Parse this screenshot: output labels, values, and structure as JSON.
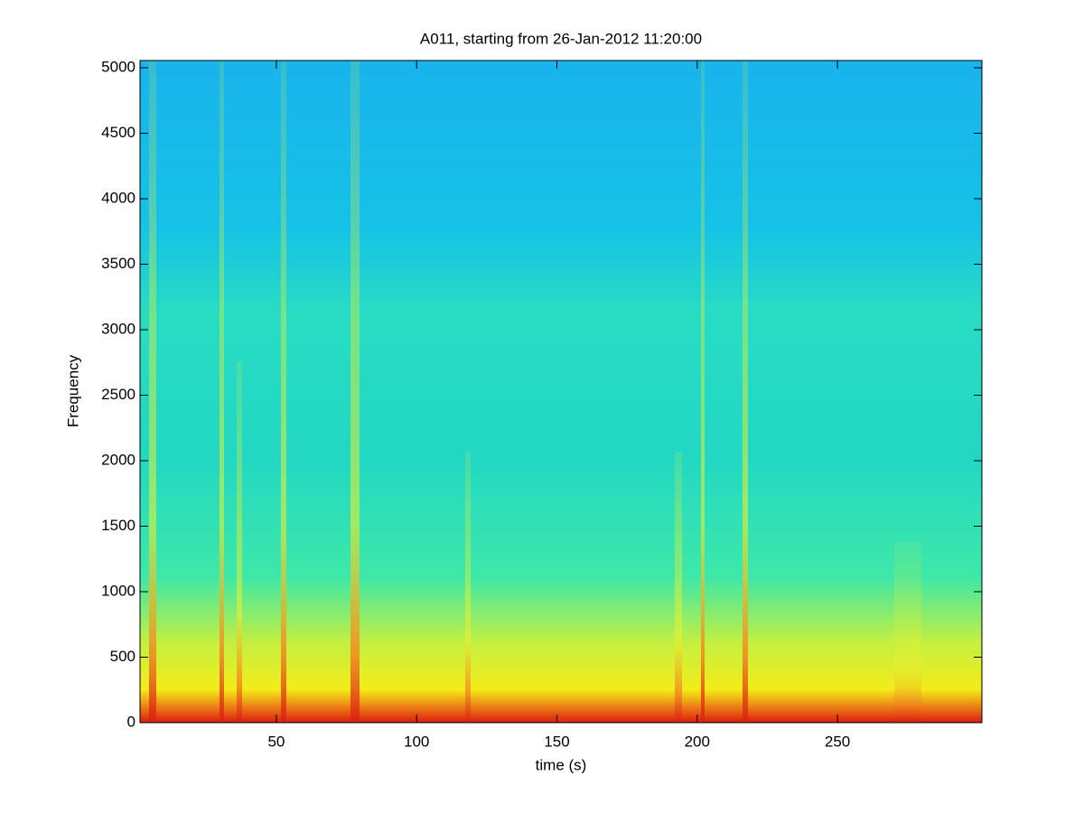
{
  "chart_data": {
    "type": "spectrogram",
    "title": "A011, starting from 26-Jan-2012 11:20:00",
    "xlabel": "time (s)",
    "ylabel": "Frequency",
    "xlim": [
      1.4,
      301.5
    ],
    "xticks": [
      50,
      100,
      150,
      200,
      250
    ],
    "ylim": [
      0,
      5055
    ],
    "yticks": [
      0,
      500,
      1000,
      1500,
      2000,
      2500,
      3000,
      3500,
      4000,
      4500,
      5000
    ]
  }
}
